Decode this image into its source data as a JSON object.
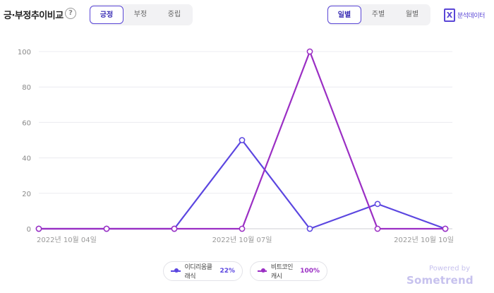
{
  "header": {
    "title": "긍·부정추이비교",
    "help_glyph": "?",
    "sentiment_tabs": [
      {
        "label": "긍정",
        "active": true
      },
      {
        "label": "부정",
        "active": false
      },
      {
        "label": "중립",
        "active": false
      }
    ],
    "period_tabs": [
      {
        "label": "일별",
        "active": true
      },
      {
        "label": "주별",
        "active": false
      },
      {
        "label": "월별",
        "active": false
      }
    ],
    "export_glyph": "X",
    "export_label": "분석데이터"
  },
  "chart_data": {
    "type": "line",
    "x": [
      "2022-10-04",
      "2022-10-05",
      "2022-10-06",
      "2022-10-07",
      "2022-10-08",
      "2022-10-09",
      "2022-10-10"
    ],
    "x_tick_labels": [
      {
        "index": 0,
        "label": "2022년 10월 04일"
      },
      {
        "index": 3,
        "label": "2022년 10월 07일"
      },
      {
        "index": 6,
        "label": "2022년 10월 10일"
      }
    ],
    "ylim": [
      0,
      100
    ],
    "yticks": [
      0,
      20,
      40,
      60,
      80,
      100
    ],
    "grid": true,
    "legend_position": "bottom-center",
    "series": [
      {
        "name": "이디리움클래식",
        "percent": "22%",
        "color": "#5b46e0",
        "values": [
          0,
          0,
          0,
          50,
          0,
          14,
          0
        ]
      },
      {
        "name": "비트코인캐시",
        "percent": "100%",
        "color": "#9b2fc4",
        "values": [
          0,
          0,
          0,
          0,
          100,
          0,
          0
        ]
      }
    ]
  },
  "branding": {
    "powered": "Powered by",
    "name": "Sometrend"
  }
}
